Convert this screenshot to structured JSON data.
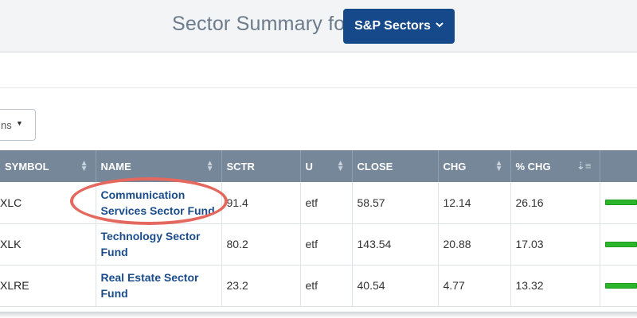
{
  "header": {
    "title": "Sector Summary for",
    "dropdown_label": "S&P Sectors",
    "dropdown_icon": "chevron-down-icon",
    "dropdown_color": "#16498a"
  },
  "columns_select": {
    "value": "ns"
  },
  "table": {
    "headers": [
      "SYMBOL",
      "NAME",
      "SCTR",
      "U",
      "CLOSE",
      "CHG",
      "% CHG",
      ""
    ],
    "rows": [
      {
        "symbol": "XLC",
        "name": "Communication Services Sector Fund",
        "sctr": "91.4",
        "u": "etf",
        "close": "58.57",
        "chg": "12.14",
        "pct_chg": "26.16"
      },
      {
        "symbol": "XLK",
        "name": "Technology Sector Fund",
        "sctr": "80.2",
        "u": "etf",
        "close": "143.54",
        "chg": "20.88",
        "pct_chg": "17.03"
      },
      {
        "symbol": "XLRE",
        "name": "Real Estate Sector Fund",
        "sctr": "23.2",
        "u": "etf",
        "close": "40.54",
        "chg": "4.77",
        "pct_chg": "13.32"
      }
    ]
  },
  "colors": {
    "header_bg": "#758799",
    "link": "#1a4c8c",
    "highlight": "#e4685d",
    "bar": "#2bb52b"
  }
}
